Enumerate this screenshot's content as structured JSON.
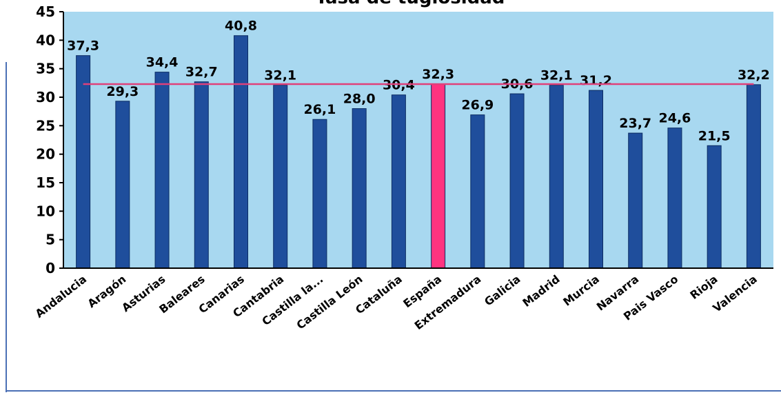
{
  "chart_data": {
    "type": "bar",
    "title": "Tasa de tugiosidad",
    "xlabel": "",
    "ylabel": "",
    "ylim": [
      0,
      45
    ],
    "yticks": [
      "0",
      "5",
      "10",
      "15",
      "20",
      "25",
      "30",
      "35",
      "40",
      "45"
    ],
    "grid": false,
    "legend": "none",
    "categories": [
      "Andalucia",
      "Aragón",
      "Asturias",
      "Baleares",
      "Canarias",
      "Cantabria",
      "Castilla la...",
      "Castilla León",
      "Cataluña",
      "España",
      "Extremadura",
      "Galicia",
      "Madrid",
      "Murcia",
      "Navarra",
      "Pais Vasco",
      "Rioja",
      "Valencia"
    ],
    "values": [
      37.3,
      29.3,
      34.4,
      32.7,
      40.8,
      32.1,
      26.1,
      28.0,
      30.4,
      32.3,
      26.9,
      30.6,
      32.1,
      31.2,
      23.7,
      24.6,
      21.5,
      32.2
    ],
    "value_labels": [
      "37,3",
      "29,3",
      "34,4",
      "32,7",
      "40,8",
      "32,1",
      "26,1",
      "28,0",
      "30,4",
      "32,3",
      "26,9",
      "30,6",
      "32,1",
      "31,2",
      "23,7",
      "24,6",
      "21,5",
      "32,2"
    ],
    "highlight_category": "España",
    "reference_line": 32.3,
    "colors": {
      "plot_background": "#a8d8f0",
      "bar": "#1f4e9c",
      "bar_highlight": "#ff3380",
      "reference_line": "#e0407a",
      "axis": "#000000",
      "frame": "#4a6fb5"
    }
  }
}
